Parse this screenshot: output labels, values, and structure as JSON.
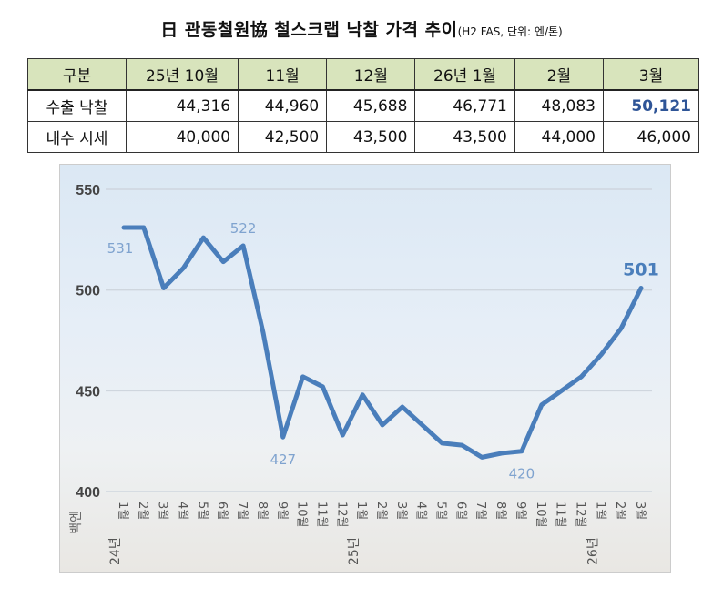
{
  "title": {
    "main": "日 관동철원協 철스크랩 낙찰 가격 추이",
    "sub": "(H2 FAS, 단위: 엔/톤)"
  },
  "table": {
    "headers": [
      "구분",
      "25년 10월",
      "11월",
      "12월",
      "26년 1월",
      "2월",
      "3월"
    ],
    "rows": [
      {
        "label": "수출 낙찰",
        "values": [
          "44,316",
          "44,960",
          "45,688",
          "46,771",
          "48,083",
          "50,121"
        ]
      },
      {
        "label": "내수 시세",
        "values": [
          "40,000",
          "42,500",
          "43,500",
          "43,500",
          "44,000",
          "46,000"
        ]
      }
    ],
    "highlight_color": "#2f5597"
  },
  "chart_data": {
    "type": "line",
    "ylabel": "백엔",
    "ylim": [
      400,
      550
    ],
    "yticks": [
      "400",
      "450",
      "500",
      "550"
    ],
    "grid": true,
    "categories": [
      "1월",
      "2월",
      "3월",
      "4월",
      "5월",
      "6월",
      "7월",
      "8월",
      "9월",
      "10월",
      "11월",
      "12월",
      "1월",
      "2월",
      "3월",
      "4월",
      "5월",
      "6월",
      "7월",
      "8월",
      "9월",
      "10월",
      "11월",
      "12월",
      "1월",
      "2월",
      "3월"
    ],
    "year_labels": [
      {
        "index": 0,
        "label": "24년"
      },
      {
        "index": 12,
        "label": "25년"
      },
      {
        "index": 24,
        "label": "26년"
      }
    ],
    "series": [
      {
        "name": "수출 낙찰",
        "color": "#4a7ebb",
        "values": [
          531,
          531,
          501,
          511,
          526,
          514,
          522,
          479,
          427,
          457,
          452,
          428,
          448,
          433,
          442,
          433,
          424,
          423,
          417,
          419,
          420,
          443,
          450,
          457,
          468,
          481,
          501
        ]
      }
    ],
    "annotations": [
      {
        "index": 0,
        "label": "531"
      },
      {
        "index": 6,
        "label": "522"
      },
      {
        "index": 8,
        "label": "427"
      },
      {
        "index": 20,
        "label": "420"
      },
      {
        "index": 26,
        "label": "501"
      }
    ]
  }
}
